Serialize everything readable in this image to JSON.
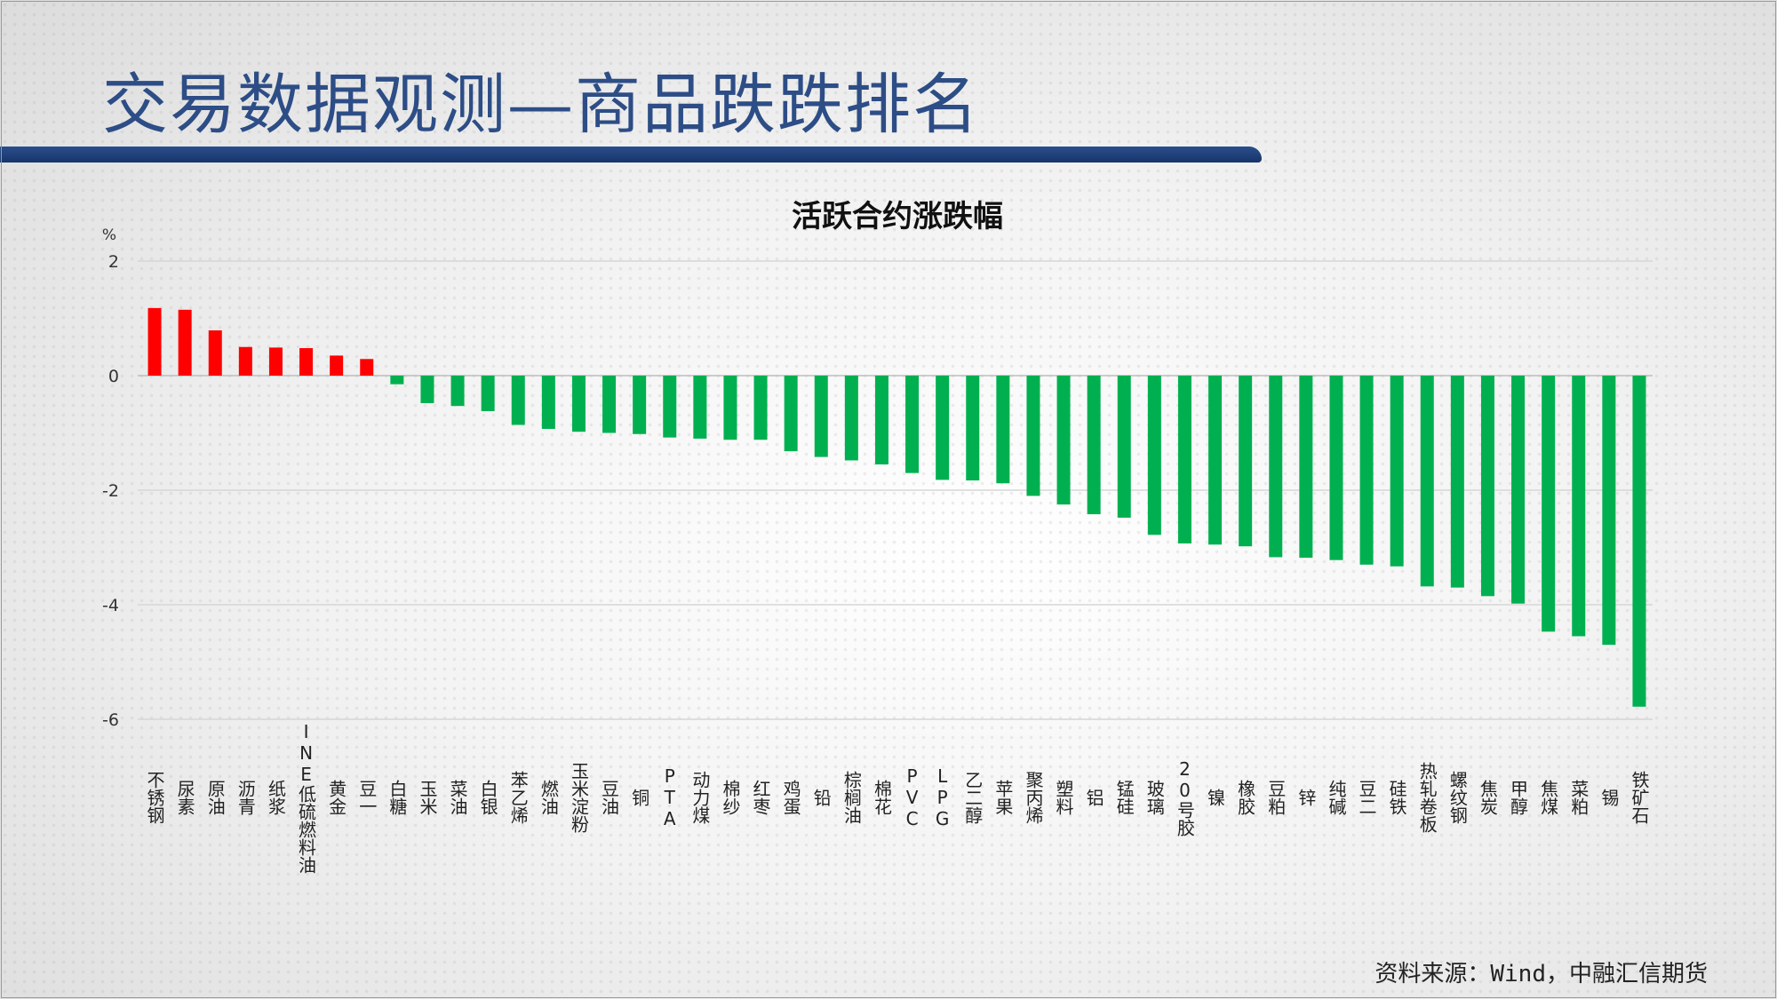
{
  "slide": {
    "title": "交易数据观测—商品跌跌排名",
    "source": "资料来源：Wind，中融汇信期货"
  },
  "colors": {
    "up": "#ff0000",
    "down": "#00b050",
    "title": "#2d4d86",
    "bar": "#1f3f7a"
  },
  "chart_data": {
    "type": "bar",
    "title": "活跃合约涨跌幅",
    "ylabel": "%",
    "ylim": [
      -6.5,
      2
    ],
    "yticks": [
      2,
      0,
      -2,
      -4,
      -6
    ],
    "grid": true,
    "categories": [
      "不锈钢",
      "尿素",
      "原油",
      "沥青",
      "纸浆",
      "INE低硫燃料油",
      "黄金",
      "豆一",
      "白糖",
      "玉米",
      "菜油",
      "白银",
      "苯乙烯",
      "燃油",
      "玉米淀粉",
      "豆油",
      "铜",
      "PTA",
      "动力煤",
      "棉纱",
      "红枣",
      "鸡蛋",
      "铅",
      "棕榈油",
      "棉花",
      "PVC",
      "LPG",
      "乙二醇",
      "苹果",
      "聚丙烯",
      "塑料",
      "铝",
      "锰硅",
      "玻璃",
      "20号胶",
      "镍",
      "橡胶",
      "豆粕",
      "锌",
      "纯碱",
      "豆二",
      "硅铁",
      "热轧卷板",
      "螺纹钢",
      "焦炭",
      "甲醇",
      "焦煤",
      "菜粕",
      "锡",
      "铁矿石"
    ],
    "values": [
      1.18,
      1.15,
      0.79,
      0.5,
      0.49,
      0.48,
      0.35,
      0.29,
      -0.15,
      -0.48,
      -0.53,
      -0.62,
      -0.86,
      -0.93,
      -0.98,
      -1.0,
      -1.02,
      -1.08,
      -1.1,
      -1.12,
      -1.12,
      -1.32,
      -1.42,
      -1.48,
      -1.55,
      -1.7,
      -1.82,
      -1.83,
      -1.88,
      -2.1,
      -2.25,
      -2.42,
      -2.48,
      -2.78,
      -2.93,
      -2.95,
      -2.98,
      -3.17,
      -3.18,
      -3.22,
      -3.3,
      -3.33,
      -3.68,
      -3.7,
      -3.85,
      -3.98,
      -4.47,
      -4.55,
      -4.7,
      -5.78
    ]
  }
}
